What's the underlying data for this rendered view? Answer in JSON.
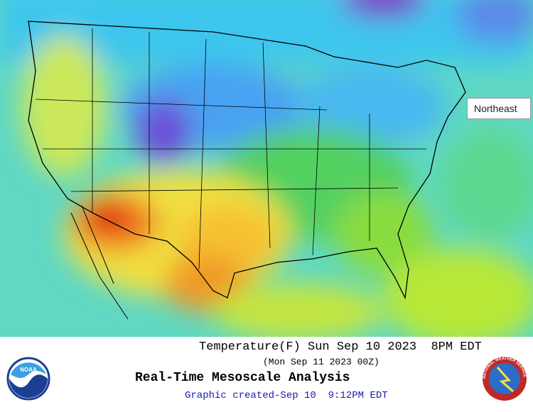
{
  "map": {
    "tooltip": "Northeast"
  },
  "caption": {
    "line1": "Temperature(F) Sun Sep 10 2023  8PM EDT",
    "line2": "(Mon Sep 11 2023 00Z)",
    "title": "Real-Time Mesoscale Analysis",
    "credit": "Graphic created-Sep 10  9:12PM EDT"
  },
  "logos": {
    "noaa": "NOAA",
    "nws": "NATIONAL WEATHER SERVICE"
  }
}
